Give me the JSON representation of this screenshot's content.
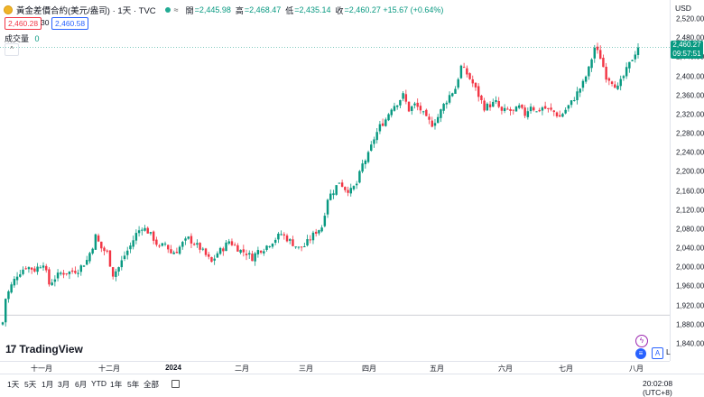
{
  "legend": {
    "symbol": "黃金差價合約(美元/盎司) · 1天 · TVC",
    "wave": "≈",
    "open_label": "開",
    "open_value": "=2,445.98",
    "high_label": "高",
    "high_value": "=2,468.47",
    "low_label": "低",
    "low_value": "=2,435.14",
    "close_label": "收",
    "close_value": "=2,460.27 +15.67 (+0.64%)"
  },
  "quote": {
    "sell": "2,460.28",
    "spread": "30",
    "buy": "2,460.58"
  },
  "volume": {
    "label": "成交量",
    "value": "0"
  },
  "price_axis": {
    "currency": "USD",
    "labels": [
      "2,520.00",
      "2,480.00",
      "2,440.00",
      "2,400.00",
      "2,360.00",
      "2,320.00",
      "2,280.00",
      "2,240.00",
      "2,200.00",
      "2,160.00",
      "2,120.00",
      "2,080.00",
      "2,040.00",
      "2,000.00",
      "1,960.00",
      "1,920.00",
      "1,880.00",
      "1,840.00"
    ],
    "last_price": "2,460.27",
    "countdown": "09:57:51"
  },
  "time_axis": {
    "labels": [
      "十一月",
      "十二月",
      "2024",
      "二月",
      "三月",
      "四月",
      "五月",
      "六月",
      "七月",
      "八月"
    ]
  },
  "bottom_bar": {
    "ranges": [
      "1天",
      "5天",
      "1月",
      "3月",
      "6月",
      "YTD",
      "1年",
      "5年",
      "全部"
    ],
    "clock": "20:02:08 (UTC+8)",
    "auto": "A",
    "log": "L"
  },
  "logo": {
    "mark": "17",
    "text": "TradingView"
  },
  "colors": {
    "up": "#089981",
    "down": "#f23645",
    "accent": "#2962ff"
  },
  "chart_data": {
    "type": "candlestick",
    "title": "黃金差價合約(美元/盎司) · 1天 · TVC",
    "ylim": [
      1840,
      2520
    ],
    "x_ticks": [
      "十一月",
      "十二月",
      "2024",
      "二月",
      "三月",
      "四月",
      "五月",
      "六月",
      "七月",
      "八月"
    ],
    "last_close": 2460.27,
    "line_levels": [
      2460.27,
      1900
    ],
    "close_path": [
      [
        0,
        1885
      ],
      [
        1,
        1935
      ],
      [
        3,
        1962
      ],
      [
        5,
        1985
      ],
      [
        8,
        2002
      ],
      [
        11,
        1995
      ],
      [
        14,
        2010
      ],
      [
        16,
        1965
      ],
      [
        18,
        1978
      ],
      [
        20,
        1988
      ],
      [
        23,
        1990
      ],
      [
        26,
        1995
      ],
      [
        29,
        2015
      ],
      [
        31,
        2045
      ],
      [
        32,
        2065
      ],
      [
        34,
        2040
      ],
      [
        36,
        2030
      ],
      [
        38,
        1985
      ],
      [
        40,
        2000
      ],
      [
        42,
        2025
      ],
      [
        44,
        2045
      ],
      [
        46,
        2070
      ],
      [
        48,
        2085
      ],
      [
        50,
        2075
      ],
      [
        52,
        2060
      ],
      [
        54,
        2040
      ],
      [
        56,
        2050
      ],
      [
        58,
        2030
      ],
      [
        60,
        2035
      ],
      [
        62,
        2050
      ],
      [
        64,
        2060
      ],
      [
        66,
        2050
      ],
      [
        68,
        2040
      ],
      [
        70,
        2025
      ],
      [
        72,
        2010
      ],
      [
        74,
        2030
      ],
      [
        76,
        2040
      ],
      [
        78,
        2055
      ],
      [
        80,
        2045
      ],
      [
        82,
        2035
      ],
      [
        84,
        2030
      ],
      [
        86,
        2020
      ],
      [
        88,
        2035
      ],
      [
        90,
        2040
      ],
      [
        92,
        2050
      ],
      [
        94,
        2060
      ],
      [
        96,
        2070
      ],
      [
        98,
        2060
      ],
      [
        100,
        2050
      ],
      [
        102,
        2040
      ],
      [
        104,
        2045
      ],
      [
        106,
        2060
      ],
      [
        108,
        2075
      ],
      [
        110,
        2085
      ],
      [
        112,
        2145
      ],
      [
        114,
        2160
      ],
      [
        116,
        2180
      ],
      [
        118,
        2165
      ],
      [
        120,
        2160
      ],
      [
        122,
        2175
      ],
      [
        124,
        2215
      ],
      [
        126,
        2235
      ],
      [
        128,
        2270
      ],
      [
        130,
        2295
      ],
      [
        132,
        2310
      ],
      [
        134,
        2335
      ],
      [
        136,
        2345
      ],
      [
        138,
        2360
      ],
      [
        140,
        2330
      ],
      [
        142,
        2340
      ],
      [
        144,
        2330
      ],
      [
        146,
        2310
      ],
      [
        148,
        2300
      ],
      [
        150,
        2315
      ],
      [
        152,
        2340
      ],
      [
        154,
        2360
      ],
      [
        156,
        2375
      ],
      [
        158,
        2420
      ],
      [
        160,
        2405
      ],
      [
        162,
        2385
      ],
      [
        164,
        2360
      ],
      [
        166,
        2335
      ],
      [
        168,
        2340
      ],
      [
        170,
        2345
      ],
      [
        172,
        2325
      ],
      [
        174,
        2330
      ],
      [
        176,
        2325
      ],
      [
        178,
        2335
      ],
      [
        180,
        2320
      ],
      [
        182,
        2340
      ],
      [
        184,
        2325
      ],
      [
        186,
        2335
      ],
      [
        188,
        2330
      ],
      [
        190,
        2325
      ],
      [
        192,
        2315
      ],
      [
        194,
        2330
      ],
      [
        196,
        2345
      ],
      [
        198,
        2365
      ],
      [
        200,
        2385
      ],
      [
        202,
        2415
      ],
      [
        204,
        2460
      ],
      [
        206,
        2440
      ],
      [
        208,
        2400
      ],
      [
        210,
        2390
      ],
      [
        212,
        2375
      ],
      [
        214,
        2400
      ],
      [
        216,
        2425
      ],
      [
        218,
        2450
      ],
      [
        219,
        2460.27
      ]
    ],
    "candle_count": 220
  }
}
